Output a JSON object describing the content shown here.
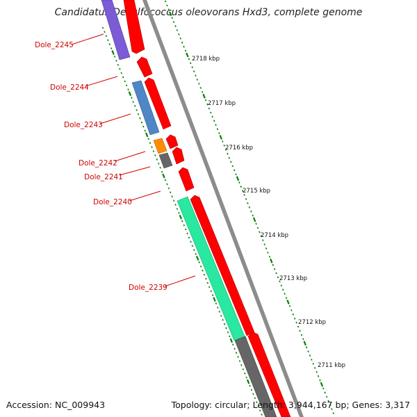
{
  "title": "Candidatus Desulfococcus oleovorans Hxd3, complete genome",
  "accession": "Accession: NC_009943",
  "topology": "Topology: circular; Length: 3,944,167 bp; Genes: 3,317",
  "colors": {
    "forward_cds": "#ff0000",
    "backbone": "#8c8c8c",
    "scale_ticks": "#008000",
    "label": "#d00000",
    "Dole_2245": "#7b5bd6",
    "Dole_2243": "#4f86c6",
    "Dole_2242": "#ff8c00",
    "Dole_2241": "#666666",
    "Dole_2239": "#29e8a0",
    "below": "#666666"
  },
  "scale_labels": [
    "2718 kbp",
    "2717 kbp",
    "2716 kbp",
    "2715 kbp",
    "2714 kbp",
    "2713 kbp",
    "2712 kbp",
    "2711 kbp"
  ],
  "gene_labels": [
    "Dole_2245",
    "Dole_2244",
    "Dole_2243",
    "Dole_2242",
    "Dole_2241",
    "Dole_2240",
    "Dole_2239"
  ]
}
